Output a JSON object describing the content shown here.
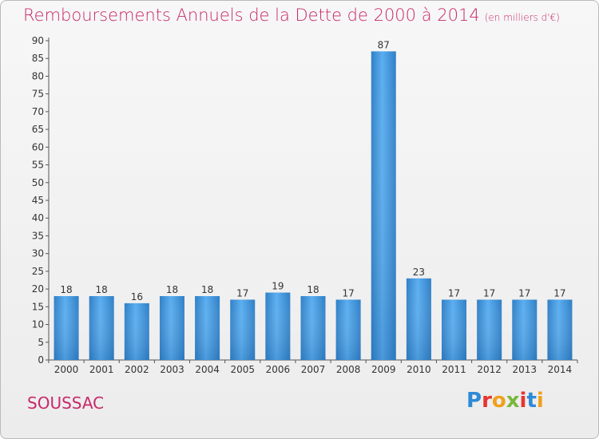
{
  "header": {
    "title": "Remboursements Annuels de la Dette de 2000 à 2014",
    "subtitle": "(en milliers d'€)"
  },
  "footer": {
    "region": "SOUSSAC",
    "logo_text": "Proxiti"
  },
  "colors": {
    "title": "#c8286a",
    "bar": "#3a8fd8",
    "logo": [
      "#2e8ad6",
      "#e8332f",
      "#f0a01c",
      "#7bb73a",
      "#e8332f",
      "#2e8ad6",
      "#f0a01c"
    ]
  },
  "chart_data": {
    "type": "bar",
    "title": "Remboursements Annuels de la Dette de 2000 à 2014",
    "ylabel": "",
    "xlabel": "",
    "ylim": [
      0,
      90
    ],
    "ytick_step": 5,
    "grid": false,
    "categories": [
      "2000",
      "2001",
      "2002",
      "2003",
      "2004",
      "2005",
      "2006",
      "2007",
      "2008",
      "2009",
      "2010",
      "2011",
      "2012",
      "2013",
      "2014"
    ],
    "values": [
      18,
      18,
      16,
      18,
      18,
      17,
      19,
      18,
      17,
      87,
      23,
      17,
      17,
      17,
      17
    ]
  }
}
